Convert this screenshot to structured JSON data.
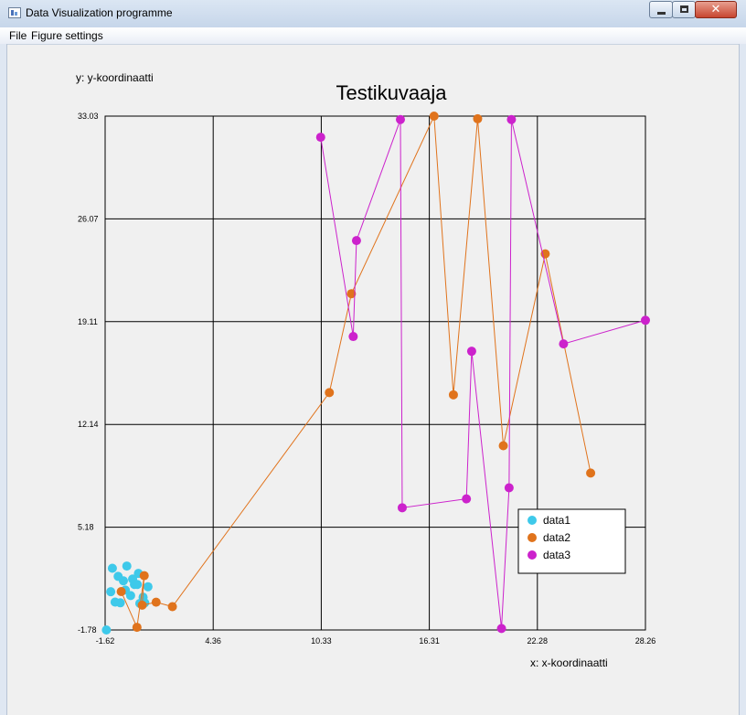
{
  "window": {
    "title": "Data Visualization programme"
  },
  "menu": {
    "items": [
      "File",
      "Figure settings"
    ]
  },
  "chart_data": {
    "type": "scatter",
    "title": "Testikuvaaja",
    "xlabel": "x:  x-koordinaatti",
    "ylabel": "y:  y-koordinaatti",
    "xlim": [
      -1.62,
      28.26
    ],
    "ylim": [
      -1.78,
      33.03
    ],
    "x_ticks": [
      "-1.62",
      "4.36",
      "10.33",
      "16.31",
      "22.28",
      "28.26"
    ],
    "y_ticks": [
      "-1.78",
      "5.18",
      "12.14",
      "19.11",
      "26.07",
      "33.03"
    ],
    "grid": true,
    "legend_position": "bottom-right",
    "series": [
      {
        "name": "data1",
        "color": "#3ec9ea",
        "connected": false,
        "x": [
          -1.55,
          -1.31,
          -1.07,
          -0.78,
          -0.5,
          -0.21,
          0.0,
          0.3,
          0.57,
          -1.22,
          -0.9,
          -0.42,
          -0.1,
          0.16,
          0.48,
          0.75,
          -0.61,
          0.22
        ],
        "y": [
          -1.78,
          0.81,
          0.11,
          0.06,
          0.92,
          0.55,
          1.3,
          0.02,
          0.06,
          2.4,
          1.85,
          2.55,
          1.67,
          1.3,
          0.44,
          1.15,
          1.55,
          2.05
        ]
      },
      {
        "name": "data2",
        "color": "#e0731c",
        "connected": true,
        "x": [
          -0.73,
          0.14,
          0.54,
          0.43,
          1.2,
          2.1,
          10.78,
          12.0,
          16.57,
          17.64,
          18.98,
          20.4,
          22.72,
          25.23
        ],
        "y": [
          0.82,
          -1.6,
          1.9,
          -0.1,
          0.1,
          -0.2,
          14.3,
          21.0,
          33.03,
          14.15,
          32.85,
          10.7,
          23.7,
          8.85
        ]
      },
      {
        "name": "data3",
        "color": "#cc22cc",
        "connected": true,
        "x": [
          10.3,
          12.1,
          12.28,
          14.71,
          14.81,
          18.36,
          18.65,
          20.3,
          20.72,
          20.85,
          23.73,
          28.26
        ],
        "y": [
          31.6,
          18.1,
          24.6,
          32.8,
          6.5,
          7.1,
          17.1,
          -1.68,
          7.85,
          32.8,
          17.6,
          19.2
        ]
      }
    ]
  }
}
